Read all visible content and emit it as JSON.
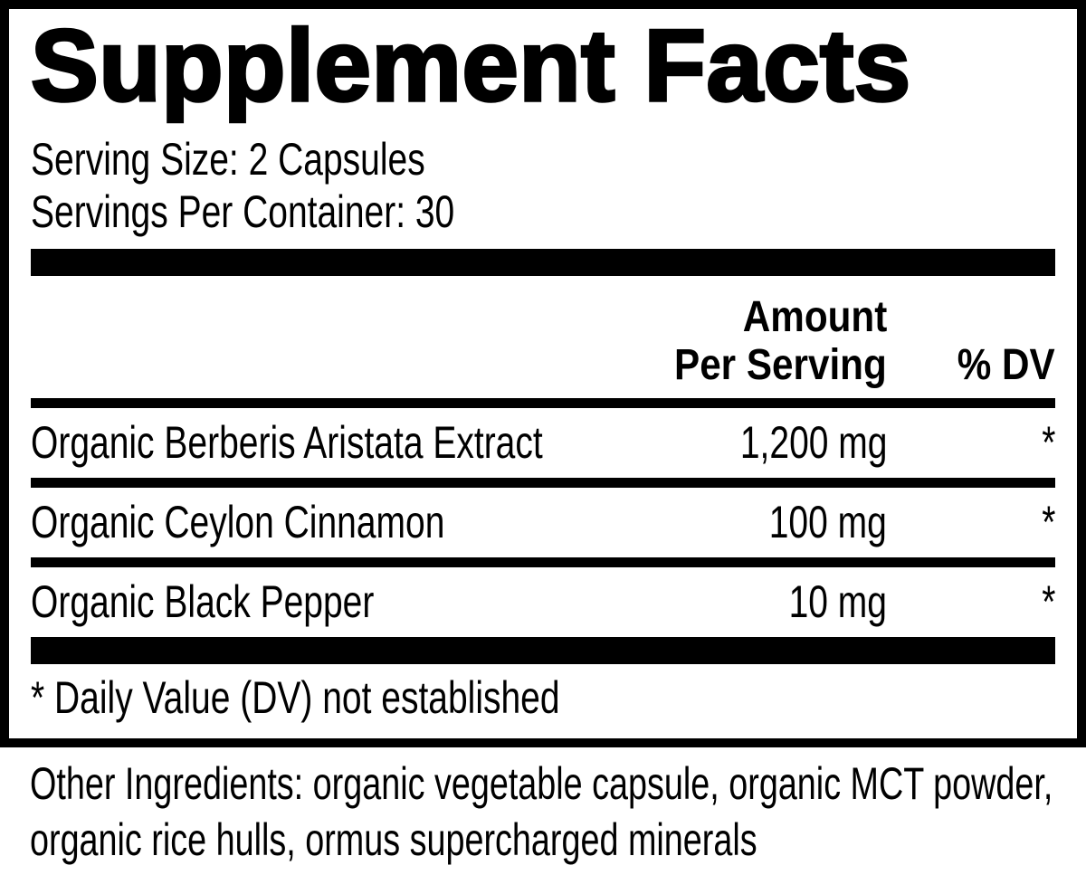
{
  "label": {
    "title": "Supplement Facts",
    "serving_size": "Serving Size: 2 Capsules",
    "servings_per_container": "Servings Per Container: 30",
    "columns": {
      "amount_line1": "Amount",
      "amount_line2": "Per Serving",
      "dv": "% DV"
    },
    "rows": [
      {
        "name": "Organic Berberis Aristata Extract",
        "amount": "1,200 mg",
        "dv": "*"
      },
      {
        "name": "Organic Ceylon Cinnamon",
        "amount": "100 mg",
        "dv": "*"
      },
      {
        "name": "Organic Black Pepper",
        "amount": "10 mg",
        "dv": "*"
      }
    ],
    "footnote": "* Daily Value (DV) not established"
  },
  "other_ingredients": {
    "lines": [
      "Other Ingredients: organic vegetable capsule, organic MCT powder,",
      "organic rice hulls, ormus supercharged minerals"
    ]
  },
  "colors": {
    "ink": "#000000",
    "background": "#ffffff"
  }
}
